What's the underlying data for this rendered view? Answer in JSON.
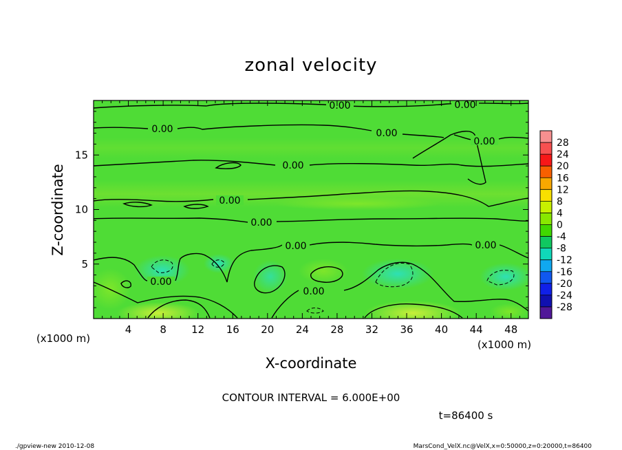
{
  "chart_data": {
    "type": "heatmap",
    "title": "zonal velocity",
    "xlabel": "X-coordinate",
    "ylabel": "Z-coordinate",
    "x_unit": "(x1000 m)",
    "y_unit": "(x1000 m)",
    "xlim": [
      0,
      50
    ],
    "ylim": [
      0,
      20
    ],
    "xticks": [
      4,
      8,
      12,
      16,
      20,
      24,
      28,
      32,
      36,
      40,
      44,
      48
    ],
    "yticks": [
      5,
      10,
      15
    ],
    "contour_interval_text": "CONTOUR INTERVAL = 6.000E+00",
    "time_text": "t=86400 s",
    "contour_labels": [
      "0.00",
      "0.00",
      "0.00",
      "0.00",
      "0.00",
      "0.00",
      "0.00",
      "0.00",
      "0.00",
      "0.00",
      "0.00",
      "0.00"
    ],
    "colorbar": {
      "ticks": [
        "28",
        "24",
        "20",
        "16",
        "12",
        "8",
        "4",
        "0",
        "-4",
        "-8",
        "-12",
        "-16",
        "-20",
        "-24",
        "-28"
      ],
      "levels": [
        32,
        28,
        24,
        20,
        16,
        12,
        8,
        4,
        0,
        -4,
        -8,
        -12,
        -16,
        -20,
        -24,
        -28,
        -32
      ],
      "colors": [
        "#f89090",
        "#f85050",
        "#f81818",
        "#f86000",
        "#f8a800",
        "#f8e000",
        "#c8f000",
        "#88e800",
        "#40d800",
        "#10c860",
        "#10d8b8",
        "#10a8f0",
        "#1058f0",
        "#1020e8",
        "#1010b0",
        "#501898"
      ]
    },
    "field_note": "values mostly between -8 and 8; near 0 throughout"
  },
  "footer": {
    "left": "./gpview-new   2010-12-08",
    "right": "MarsCond_VelX.nc@VelX,x=0:50000,z=0:20000,t=86400"
  }
}
